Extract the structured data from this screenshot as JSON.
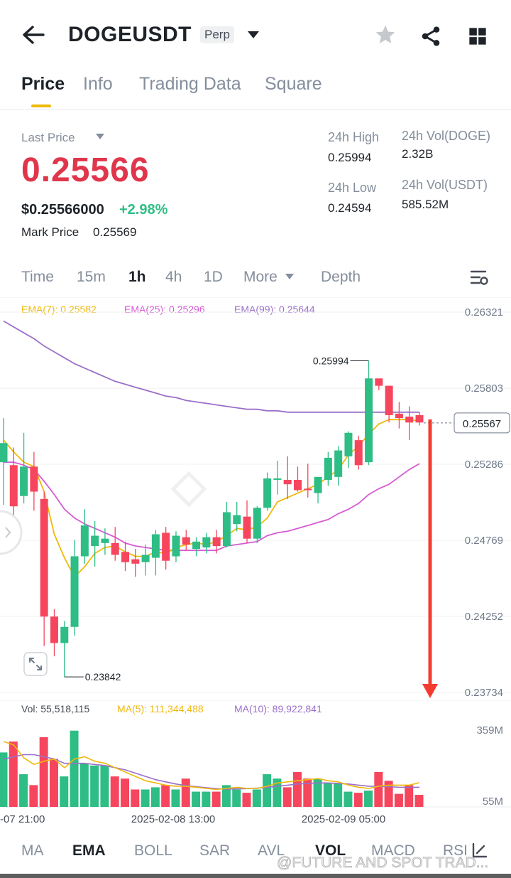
{
  "header": {
    "symbol": "DOGEUSDT",
    "contract_type": "Perp",
    "icons": [
      "back-arrow-icon",
      "caret-down-icon",
      "star-icon",
      "share-icon",
      "grid-icon"
    ]
  },
  "tabs": [
    {
      "label": "Price",
      "active": true
    },
    {
      "label": "Info",
      "active": false
    },
    {
      "label": "Trading Data",
      "active": false
    },
    {
      "label": "Square",
      "active": false
    }
  ],
  "ticker": {
    "last_price_label": "Last Price",
    "last_price": "0.25566",
    "usd_price": "$0.25566000",
    "change_pct": "+2.98%",
    "mark_price_label": "Mark Price",
    "mark_price": "0.25569",
    "high_label": "24h High",
    "high": "0.25994",
    "low_label": "24h Low",
    "low": "0.24594",
    "vol_doge_label": "24h Vol(DOGE)",
    "vol_doge": "2.32B",
    "vol_usdt_label": "24h Vol(USDT)",
    "vol_usdt": "585.52M"
  },
  "timeframes": [
    {
      "label": "Time",
      "active": false
    },
    {
      "label": "15m",
      "active": false
    },
    {
      "label": "1h",
      "active": true
    },
    {
      "label": "4h",
      "active": false
    },
    {
      "label": "1D",
      "active": false
    },
    {
      "label": "More",
      "active": false
    },
    {
      "label": "Depth",
      "active": false
    }
  ],
  "ema_legend": {
    "ema7": "EMA(7): 0.25582",
    "ema25": "EMA(25): 0.25296",
    "ema99": "EMA(99): 0.25644"
  },
  "colors": {
    "up": "#2ebd85",
    "down": "#f6465d",
    "ema7": "#f0b90b",
    "ema25": "#d65ad4",
    "ema99": "#9b6fc9",
    "accent": "#f0b90b",
    "arrow": "#f43b2f"
  },
  "chart_data": [
    {
      "type": "candlestick",
      "title": "",
      "y_ticks": [
        "0.26321",
        "0.25803",
        "0.25286",
        "0.24769",
        "0.24252",
        "0.23734"
      ],
      "ylim": [
        0.23734,
        0.26321
      ],
      "current_price_label": "0.25567",
      "high_annotation": "0.25994",
      "low_annotation": "0.23842",
      "x_labels": [
        "-07 21:00",
        "2025-02-08 13:00",
        "2025-02-09 05:00"
      ],
      "candles": [
        {
          "o": 0.253,
          "h": 0.256,
          "l": 0.2501,
          "c": 0.2543
        },
        {
          "o": 0.2528,
          "h": 0.254,
          "l": 0.2492,
          "c": 0.25
        },
        {
          "o": 0.2507,
          "h": 0.255,
          "l": 0.2502,
          "c": 0.2527
        },
        {
          "o": 0.2527,
          "h": 0.2537,
          "l": 0.2497,
          "c": 0.251
        },
        {
          "o": 0.2505,
          "h": 0.251,
          "l": 0.2405,
          "c": 0.2425
        },
        {
          "o": 0.2425,
          "h": 0.243,
          "l": 0.2398,
          "c": 0.2407
        },
        {
          "o": 0.2407,
          "h": 0.2422,
          "l": 0.2384,
          "c": 0.2418
        },
        {
          "o": 0.2418,
          "h": 0.2477,
          "l": 0.2412,
          "c": 0.2466
        },
        {
          "o": 0.2466,
          "h": 0.2498,
          "l": 0.2461,
          "c": 0.2487
        },
        {
          "o": 0.2473,
          "h": 0.249,
          "l": 0.2459,
          "c": 0.248
        },
        {
          "o": 0.2475,
          "h": 0.2485,
          "l": 0.2467,
          "c": 0.2478
        },
        {
          "o": 0.2475,
          "h": 0.2486,
          "l": 0.2463,
          "c": 0.2467
        },
        {
          "o": 0.2469,
          "h": 0.2476,
          "l": 0.2456,
          "c": 0.2462
        },
        {
          "o": 0.2464,
          "h": 0.2471,
          "l": 0.2452,
          "c": 0.2461
        },
        {
          "o": 0.2462,
          "h": 0.2474,
          "l": 0.2453,
          "c": 0.2467
        },
        {
          "o": 0.2465,
          "h": 0.2484,
          "l": 0.2453,
          "c": 0.2481
        },
        {
          "o": 0.2482,
          "h": 0.2486,
          "l": 0.2457,
          "c": 0.2463
        },
        {
          "o": 0.2466,
          "h": 0.2483,
          "l": 0.2462,
          "c": 0.248
        },
        {
          "o": 0.2479,
          "h": 0.2484,
          "l": 0.247,
          "c": 0.2474
        },
        {
          "o": 0.2471,
          "h": 0.2479,
          "l": 0.2466,
          "c": 0.2476
        },
        {
          "o": 0.2472,
          "h": 0.2482,
          "l": 0.2468,
          "c": 0.2479
        },
        {
          "o": 0.2479,
          "h": 0.2484,
          "l": 0.2468,
          "c": 0.2473
        },
        {
          "o": 0.2473,
          "h": 0.2503,
          "l": 0.2472,
          "c": 0.2496
        },
        {
          "o": 0.2488,
          "h": 0.2503,
          "l": 0.2483,
          "c": 0.2494
        },
        {
          "o": 0.2493,
          "h": 0.2504,
          "l": 0.2475,
          "c": 0.2478
        },
        {
          "o": 0.2478,
          "h": 0.25,
          "l": 0.2475,
          "c": 0.2499
        },
        {
          "o": 0.2499,
          "h": 0.2523,
          "l": 0.2497,
          "c": 0.2519
        },
        {
          "o": 0.2518,
          "h": 0.2531,
          "l": 0.2508,
          "c": 0.2519
        },
        {
          "o": 0.2518,
          "h": 0.2534,
          "l": 0.2505,
          "c": 0.2515
        },
        {
          "o": 0.2518,
          "h": 0.2527,
          "l": 0.251,
          "c": 0.2511
        },
        {
          "o": 0.2512,
          "h": 0.2529,
          "l": 0.2506,
          "c": 0.2511
        },
        {
          "o": 0.2509,
          "h": 0.2519,
          "l": 0.2502,
          "c": 0.252
        },
        {
          "o": 0.2518,
          "h": 0.2537,
          "l": 0.2514,
          "c": 0.2533
        },
        {
          "o": 0.252,
          "h": 0.2541,
          "l": 0.2514,
          "c": 0.2538
        },
        {
          "o": 0.2534,
          "h": 0.2551,
          "l": 0.2526,
          "c": 0.255
        },
        {
          "o": 0.2545,
          "h": 0.2548,
          "l": 0.2525,
          "c": 0.2528
        },
        {
          "o": 0.253,
          "h": 0.2599,
          "l": 0.2528,
          "c": 0.2587
        },
        {
          "o": 0.2587,
          "h": 0.2586,
          "l": 0.2579,
          "c": 0.2582
        },
        {
          "o": 0.2582,
          "h": 0.258,
          "l": 0.2557,
          "c": 0.2562
        },
        {
          "o": 0.2563,
          "h": 0.2571,
          "l": 0.2553,
          "c": 0.256
        },
        {
          "o": 0.2561,
          "h": 0.2568,
          "l": 0.2545,
          "c": 0.2557
        },
        {
          "o": 0.2562,
          "h": 0.2564,
          "l": 0.2555,
          "c": 0.2557
        }
      ],
      "ema7": [
        0.2545,
        0.2537,
        0.253,
        0.2527,
        0.251,
        0.2481,
        0.2465,
        0.2452,
        0.2459,
        0.2468,
        0.2472,
        0.2473,
        0.2469,
        0.2466,
        0.2466,
        0.2469,
        0.2468,
        0.2472,
        0.2474,
        0.2475,
        0.2474,
        0.2476,
        0.248,
        0.2485,
        0.2484,
        0.2486,
        0.2492,
        0.2503,
        0.2506,
        0.2509,
        0.2512,
        0.2515,
        0.252,
        0.2525,
        0.2535,
        0.2541,
        0.2549,
        0.2556,
        0.2559,
        0.2559,
        0.2559,
        0.2558
      ],
      "ema25": [
        0.253,
        0.253,
        0.2528,
        0.2525,
        0.2517,
        0.2508,
        0.2498,
        0.2492,
        0.2488,
        0.2485,
        0.2482,
        0.2479,
        0.2475,
        0.2473,
        0.2472,
        0.2471,
        0.247,
        0.247,
        0.247,
        0.247,
        0.247,
        0.247,
        0.2473,
        0.2474,
        0.2475,
        0.2476,
        0.248,
        0.2482,
        0.2483,
        0.2485,
        0.2487,
        0.2489,
        0.2491,
        0.2495,
        0.2498,
        0.2502,
        0.2508,
        0.2512,
        0.2515,
        0.252,
        0.2525,
        0.2529
      ],
      "ema99": [
        0.2626,
        0.2622,
        0.2618,
        0.2614,
        0.2609,
        0.2605,
        0.2601,
        0.2597,
        0.2594,
        0.2591,
        0.2588,
        0.2585,
        0.2583,
        0.2581,
        0.2579,
        0.2577,
        0.2575,
        0.2574,
        0.2572,
        0.2571,
        0.257,
        0.2569,
        0.2568,
        0.2567,
        0.2566,
        0.2566,
        0.2565,
        0.2565,
        0.2564,
        0.2564,
        0.2564,
        0.2564,
        0.2564,
        0.2564,
        0.2564,
        0.2564,
        0.2564,
        0.2564,
        0.2564,
        0.2564,
        0.2564,
        0.2564
      ]
    },
    {
      "type": "bar",
      "title": "",
      "legend_vol": "Vol: 55,518,115",
      "legend_ma5": "MA(5): 111,344,488",
      "legend_ma10": "MA(10): 89,922,841",
      "y_ticks": [
        "359M",
        "55M"
      ],
      "ylim": [
        0,
        359000000
      ],
      "volumes": [
        250000000,
        300000000,
        150000000,
        100000000,
        320000000,
        220000000,
        140000000,
        350000000,
        200000000,
        190000000,
        190000000,
        140000000,
        130000000,
        80000000,
        80000000,
        90000000,
        100000000,
        80000000,
        130000000,
        70000000,
        70000000,
        70000000,
        100000000,
        80000000,
        65000000,
        80000000,
        150000000,
        130000000,
        90000000,
        160000000,
        130000000,
        130000000,
        110000000,
        110000000,
        70000000,
        65000000,
        75000000,
        160000000,
        120000000,
        60000000,
        100000000,
        55518115
      ],
      "ma5": [
        300000000,
        285000000,
        225000000,
        195000000,
        210000000,
        220000000,
        180000000,
        220000000,
        230000000,
        210000000,
        200000000,
        180000000,
        160000000,
        140000000,
        120000000,
        110000000,
        100000000,
        95000000,
        95000000,
        90000000,
        85000000,
        80000000,
        85000000,
        90000000,
        85000000,
        85000000,
        95000000,
        110000000,
        115000000,
        120000000,
        125000000,
        130000000,
        120000000,
        115000000,
        100000000,
        90000000,
        85000000,
        95000000,
        100000000,
        100000000,
        100000000,
        111344488
      ],
      "ma10": [
        220000000,
        230000000,
        240000000,
        240000000,
        230000000,
        220000000,
        200000000,
        200000000,
        200000000,
        195000000,
        190000000,
        180000000,
        170000000,
        155000000,
        140000000,
        125000000,
        115000000,
        105000000,
        98000000,
        93000000,
        88000000,
        84000000,
        82000000,
        83000000,
        84000000,
        86000000,
        90000000,
        95000000,
        100000000,
        105000000,
        108000000,
        110000000,
        110000000,
        108000000,
        105000000,
        100000000,
        95000000,
        95000000,
        93000000,
        90000000,
        90000000,
        89922841
      ]
    }
  ],
  "indicators": [
    {
      "label": "MA",
      "active": false
    },
    {
      "label": "EMA",
      "active": true
    },
    {
      "label": "BOLL",
      "active": false
    },
    {
      "label": "SAR",
      "active": false
    },
    {
      "label": "AVL",
      "active": false
    },
    {
      "label": "VOL",
      "active": true
    },
    {
      "label": "MACD",
      "active": false
    },
    {
      "label": "RSI",
      "active": false
    }
  ],
  "watermark": "@FUTURE AND SPOT TRAD..."
}
